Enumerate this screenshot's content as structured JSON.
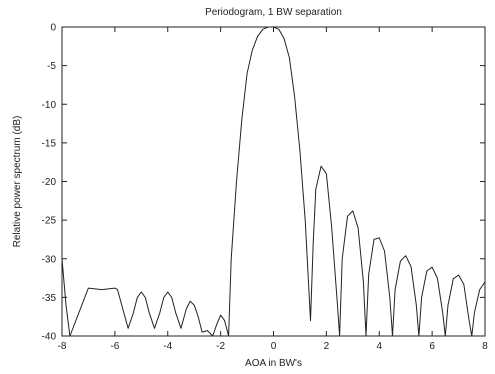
{
  "chart_data": {
    "type": "line",
    "title": "Periodogram, 1 BW separation",
    "xlabel": "AOA in BW's",
    "ylabel": "Relative power spectrum (dB)",
    "xlim": [
      -8,
      8
    ],
    "ylim": [
      -40,
      0
    ],
    "xticks": [
      -8,
      -6,
      -4,
      -2,
      0,
      2,
      4,
      6,
      8
    ],
    "yticks": [
      0,
      -5,
      -10,
      -15,
      -20,
      -25,
      -30,
      -35,
      -40
    ],
    "xtick_labels": [
      "-8",
      "-6",
      "-4",
      "-2",
      "0",
      "2",
      "4",
      "6",
      "8"
    ],
    "ytick_labels": [
      "0",
      "-5",
      "-10",
      "-15",
      "-20",
      "-25",
      "-30",
      "-35",
      "-40"
    ],
    "grid": false,
    "legend": "none",
    "series": [
      {
        "x": [
          -8.0,
          -7.85,
          -7.7,
          -7.0,
          -6.5,
          -6.0,
          -5.9,
          -5.5,
          -5.3,
          -5.15,
          -5.0,
          -4.85,
          -4.7,
          -4.5,
          -4.3,
          -4.15,
          -4.0,
          -3.85,
          -3.7,
          -3.5,
          -3.3,
          -3.15,
          -3.0,
          -2.85,
          -2.7,
          -2.5,
          -2.3,
          -2.15,
          -2.0,
          -1.85,
          -1.7,
          -1.6,
          -1.4,
          -1.2,
          -1.0,
          -0.8,
          -0.6,
          -0.4,
          -0.2,
          0.0,
          0.2,
          0.4,
          0.6,
          0.8,
          1.0,
          1.2,
          1.4,
          1.5,
          1.6,
          1.8,
          2.0,
          2.2,
          2.4,
          2.5,
          2.6,
          2.8,
          3.0,
          3.2,
          3.4,
          3.5,
          3.6,
          3.8,
          4.0,
          4.2,
          4.4,
          4.5,
          4.6,
          4.8,
          5.0,
          5.2,
          5.4,
          5.5,
          5.6,
          5.8,
          6.0,
          6.2,
          6.4,
          6.5,
          6.6,
          6.8,
          7.0,
          7.2,
          7.4,
          7.5,
          7.6,
          7.8,
          8.0
        ],
        "y": [
          -30,
          -36,
          -40,
          -33.8,
          -34,
          -33.8,
          -34,
          -39,
          -37,
          -35,
          -34.3,
          -35,
          -37,
          -39,
          -37,
          -35,
          -34.3,
          -35,
          -37,
          -39,
          -36.5,
          -35.5,
          -36,
          -37.5,
          -39.5,
          -39.3,
          -40,
          -38.5,
          -37.3,
          -38,
          -40,
          -30,
          -20,
          -12,
          -6,
          -3,
          -1.2,
          -0.3,
          0,
          0,
          -0.3,
          -1.5,
          -4,
          -9,
          -16,
          -25,
          -38,
          -28,
          -21,
          -18,
          -19,
          -26,
          -35,
          -40,
          -30,
          -24.5,
          -23.8,
          -26,
          -33,
          -40,
          -32,
          -27.5,
          -27.3,
          -29,
          -35,
          -40,
          -34,
          -30.3,
          -29.6,
          -31,
          -36,
          -40,
          -35,
          -31.6,
          -31.1,
          -32.5,
          -37,
          -40,
          -36,
          -32.6,
          -32.1,
          -33.3,
          -38,
          -40,
          -37,
          -34,
          -33
        ]
      }
    ]
  }
}
